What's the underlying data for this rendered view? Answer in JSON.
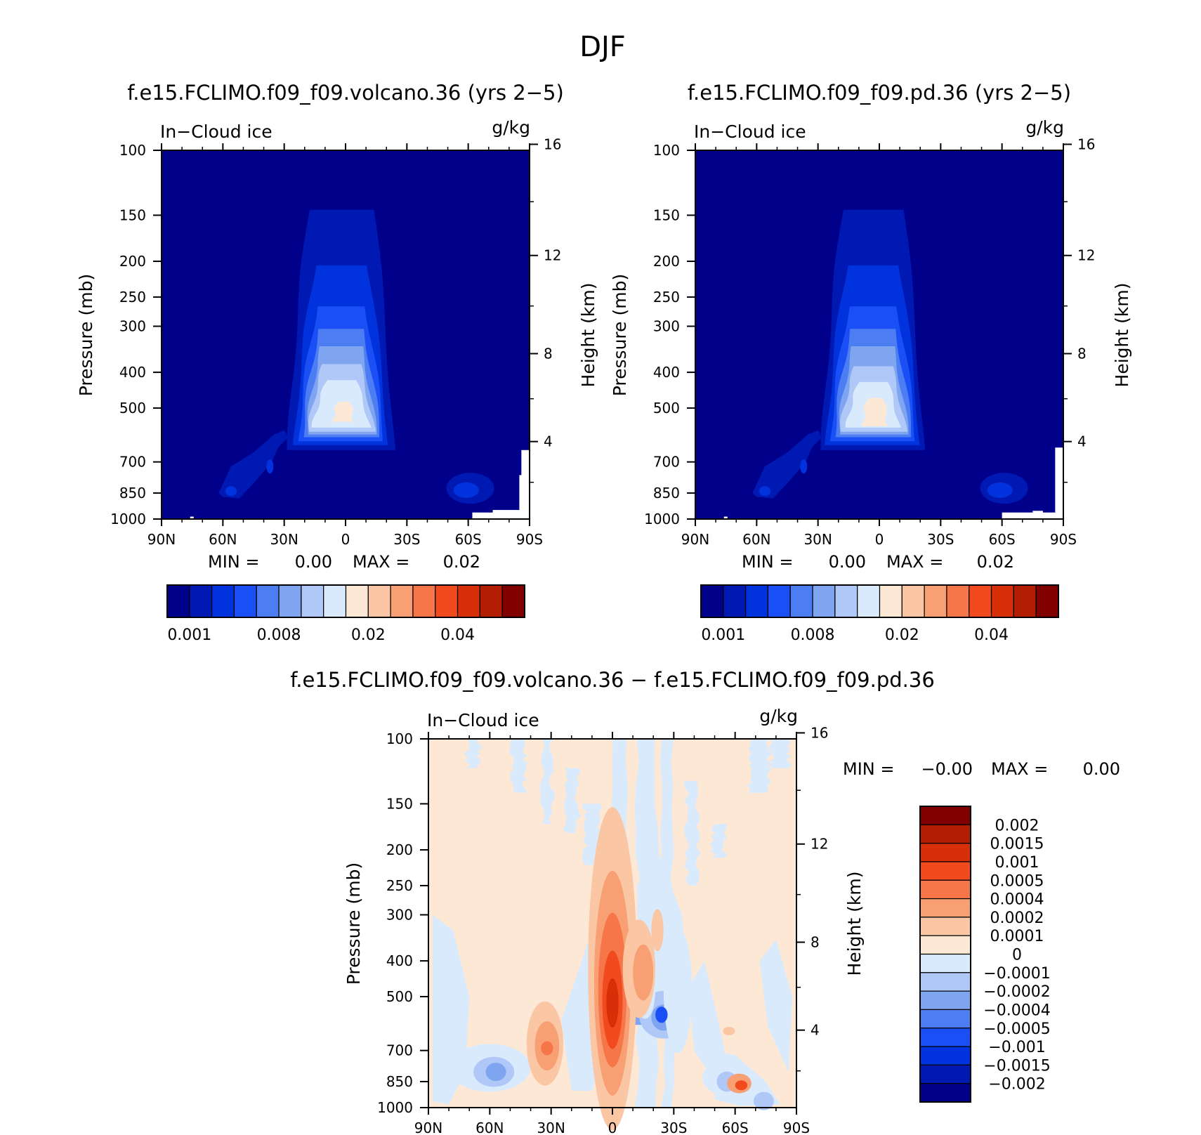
{
  "figure": {
    "title": "DJF"
  },
  "chart_data": [
    {
      "type": "heatmap",
      "title": "f.e15.FCLIMO.f09_f09.volcano.36 (yrs 2−5)",
      "left_label": "In−Cloud ice",
      "units": "g/kg",
      "ylabel": "Pressure (mb)",
      "ylabel2": "Height (km)",
      "x_ticks": [
        "90N",
        "60N",
        "30N",
        "0",
        "30S",
        "60S",
        "90S"
      ],
      "x_tick_values": [
        90,
        60,
        30,
        0,
        -30,
        -60,
        -90
      ],
      "xlim": [
        90,
        -90
      ],
      "y_ticks": [
        100,
        150,
        200,
        250,
        300,
        400,
        500,
        700,
        850,
        1000
      ],
      "ylim": [
        1000,
        100
      ],
      "y_scale": "log",
      "height_ticks": [
        16,
        12,
        8,
        4
      ],
      "min_text": "MIN =",
      "min_value": "0.00",
      "max_text": "MAX =",
      "max_value": "0.02",
      "colorbar_orientation": "horizontal",
      "colorbar_labels": [
        "0.001",
        "0.008",
        "0.02",
        "0.04"
      ],
      "palette": [
        "#00008b",
        "#0019b3",
        "#0033dd",
        "#1a4ff5",
        "#4d7df2",
        "#7fa4f0",
        "#b0c8f8",
        "#d9eafc",
        "#fde8d6",
        "#fbc6a4",
        "#f8a074",
        "#f6764a",
        "#f04a1e",
        "#d72f08",
        "#b31e02",
        "#800000"
      ],
      "features": [
        {
          "lat_center": 2,
          "p_center": 520,
          "peak_level": 8,
          "description_level": "maximum"
        }
      ]
    },
    {
      "type": "heatmap",
      "title": "f.e15.FCLIMO.f09_f09.pd.36 (yrs 2−5)",
      "left_label": "In−Cloud ice",
      "units": "g/kg",
      "ylabel": "Pressure (mb)",
      "ylabel2": "Height (km)",
      "x_ticks": [
        "90N",
        "60N",
        "30N",
        "0",
        "30S",
        "60S",
        "90S"
      ],
      "x_tick_values": [
        90,
        60,
        30,
        0,
        -30,
        -60,
        -90
      ],
      "xlim": [
        90,
        -90
      ],
      "y_ticks": [
        100,
        150,
        200,
        250,
        300,
        400,
        500,
        700,
        850,
        1000
      ],
      "ylim": [
        1000,
        100
      ],
      "y_scale": "log",
      "height_ticks": [
        16,
        12,
        8,
        4
      ],
      "min_text": "MIN =",
      "min_value": "0.00",
      "max_text": "MAX =",
      "max_value": "0.02",
      "colorbar_orientation": "horizontal",
      "colorbar_labels": [
        "0.001",
        "0.008",
        "0.02",
        "0.04"
      ],
      "palette": [
        "#00008b",
        "#0019b3",
        "#0033dd",
        "#1a4ff5",
        "#4d7df2",
        "#7fa4f0",
        "#b0c8f8",
        "#d9eafc",
        "#fde8d6",
        "#fbc6a4",
        "#f8a074",
        "#f6764a",
        "#f04a1e",
        "#d72f08",
        "#b31e02",
        "#800000"
      ]
    },
    {
      "type": "heatmap",
      "title": "f.e15.FCLIMO.f09_f09.volcano.36 − f.e15.FCLIMO.f09_f09.pd.36",
      "left_label": "In−Cloud ice",
      "units": "g/kg",
      "ylabel": "Pressure (mb)",
      "ylabel2": "Height (km)",
      "x_ticks": [
        "90N",
        "60N",
        "30N",
        "0",
        "30S",
        "60S",
        "90S"
      ],
      "x_tick_values": [
        90,
        60,
        30,
        0,
        -30,
        -60,
        -90
      ],
      "xlim": [
        90,
        -90
      ],
      "y_ticks": [
        100,
        150,
        200,
        250,
        300,
        400,
        500,
        700,
        850,
        1000
      ],
      "ylim": [
        1000,
        100
      ],
      "y_scale": "log",
      "height_ticks": [
        16,
        12,
        8,
        4
      ],
      "min_text": "MIN =",
      "min_value": "−0.00",
      "max_text": "MAX =",
      "max_value": "0.00",
      "colorbar_orientation": "vertical",
      "colorbar_labels": [
        "0.002",
        "0.0015",
        "0.001",
        "0.0005",
        "0.0004",
        "0.0002",
        "0.0001",
        "0",
        "−0.0001",
        "−0.0002",
        "−0.0004",
        "−0.0005",
        "−0.001",
        "−0.0015",
        "−0.002"
      ],
      "palette": [
        "#800000",
        "#b31e02",
        "#d72f08",
        "#f04a1e",
        "#f6764a",
        "#f8a074",
        "#fbc6a4",
        "#fde8d6",
        "#d9eafc",
        "#b0c8f8",
        "#7fa4f0",
        "#4d7df2",
        "#1a4ff5",
        "#0033dd",
        "#0019b3",
        "#00008b"
      ]
    }
  ]
}
